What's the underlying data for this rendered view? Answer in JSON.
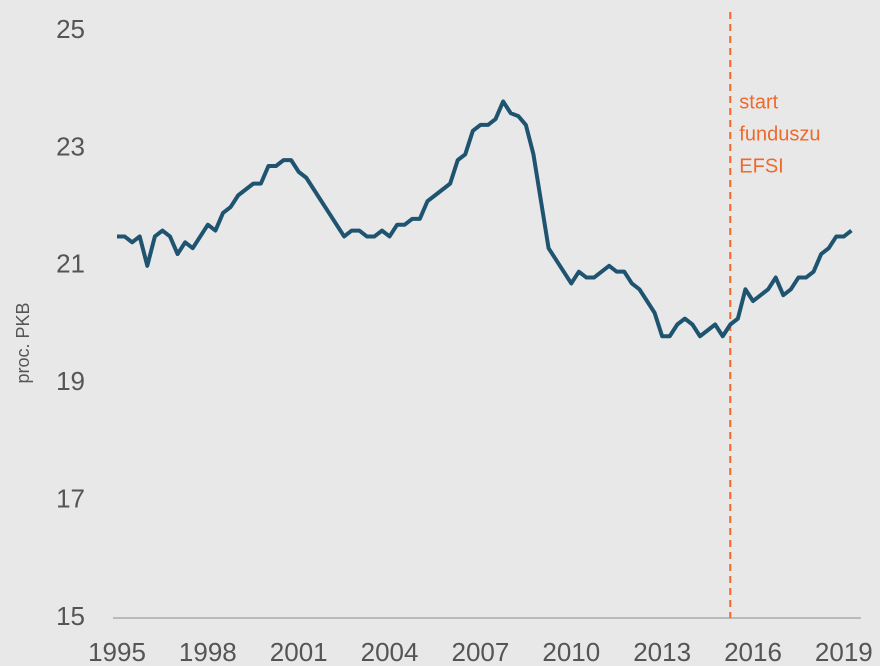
{
  "chart_data": {
    "type": "line",
    "ylabel": "proc. PKB",
    "x": [
      1995,
      1995.25,
      1995.5,
      1995.75,
      1996,
      1996.25,
      1996.5,
      1996.75,
      1997,
      1997.25,
      1997.5,
      1997.75,
      1998,
      1998.25,
      1998.5,
      1998.75,
      1999,
      1999.25,
      1999.5,
      1999.75,
      2000,
      2000.25,
      2000.5,
      2000.75,
      2001,
      2001.25,
      2001.5,
      2001.75,
      2002,
      2002.25,
      2002.5,
      2002.75,
      2003,
      2003.25,
      2003.5,
      2003.75,
      2004,
      2004.25,
      2004.5,
      2004.75,
      2005,
      2005.25,
      2005.5,
      2005.75,
      2006,
      2006.25,
      2006.5,
      2006.75,
      2007,
      2007.25,
      2007.5,
      2007.75,
      2008,
      2008.25,
      2008.5,
      2008.75,
      2009,
      2009.25,
      2009.5,
      2009.75,
      2010,
      2010.25,
      2010.5,
      2010.75,
      2011,
      2011.25,
      2011.5,
      2011.75,
      2012,
      2012.25,
      2012.5,
      2012.75,
      2013,
      2013.25,
      2013.5,
      2013.75,
      2014,
      2014.25,
      2014.5,
      2014.75,
      2015,
      2015.25,
      2015.5,
      2015.75,
      2016,
      2016.25,
      2016.5,
      2016.75,
      2017,
      2017.25,
      2017.5,
      2017.75,
      2018,
      2018.25,
      2018.5,
      2018.75,
      2019,
      2019.25
    ],
    "series": [
      {
        "color": "#1f5470",
        "values": [
          21.5,
          21.5,
          21.4,
          21.5,
          21.0,
          21.5,
          21.6,
          21.5,
          21.2,
          21.4,
          21.3,
          21.5,
          21.7,
          21.6,
          21.9,
          22.0,
          22.2,
          22.3,
          22.4,
          22.4,
          22.7,
          22.7,
          22.8,
          22.8,
          22.6,
          22.5,
          22.3,
          22.1,
          21.9,
          21.7,
          21.5,
          21.6,
          21.6,
          21.5,
          21.5,
          21.6,
          21.5,
          21.7,
          21.7,
          21.8,
          21.8,
          22.1,
          22.2,
          22.3,
          22.4,
          22.8,
          22.9,
          23.3,
          23.4,
          23.4,
          23.5,
          23.8,
          23.6,
          23.55,
          23.4,
          22.9,
          22.1,
          21.3,
          21.1,
          20.9,
          20.7,
          20.9,
          20.8,
          20.8,
          20.9,
          21.0,
          20.9,
          20.9,
          20.7,
          20.6,
          20.4,
          20.2,
          19.8,
          19.8,
          20.0,
          20.1,
          20.0,
          19.8,
          19.9,
          20.0,
          19.8,
          20.0,
          20.1,
          20.6,
          20.4,
          20.5,
          20.6,
          20.8,
          20.5,
          20.6,
          20.8,
          20.8,
          20.9,
          21.2,
          21.3,
          21.5,
          21.5,
          21.6
        ]
      }
    ],
    "xlim": [
      1995,
      2019.5
    ],
    "xticks": [
      1995,
      1998,
      2001,
      2004,
      2007,
      2010,
      2013,
      2016,
      2019
    ],
    "ylim": [
      15,
      25
    ],
    "yticks": [
      15,
      17,
      19,
      21,
      23,
      25
    ],
    "annotation": {
      "x": 2015.25,
      "color": "#ee6a2c",
      "lines": [
        "start",
        "funduszu",
        "EFSI"
      ]
    }
  }
}
